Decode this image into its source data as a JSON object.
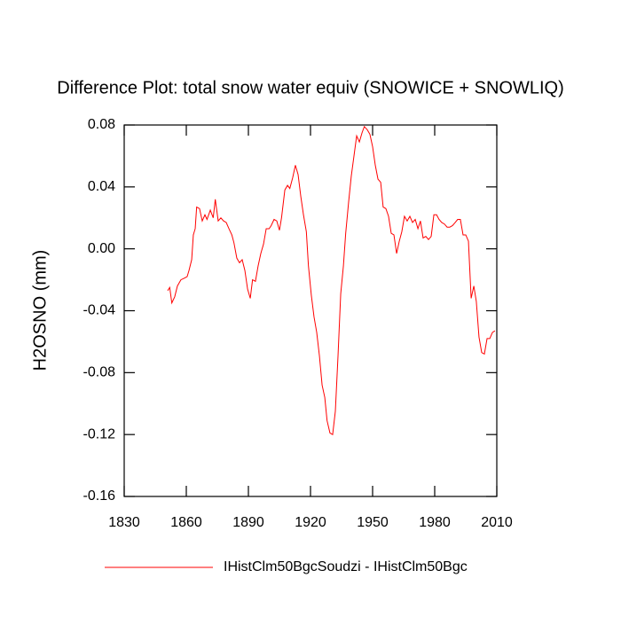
{
  "chart_data": {
    "type": "line",
    "title": "Difference Plot: total snow water equiv (SNOWICE + SNOWLIQ)",
    "y_label": "H2OSNO  (mm)",
    "xlim": [
      1830,
      2010
    ],
    "xticks": [
      1830,
      1860,
      1890,
      1920,
      1950,
      1980,
      2010
    ],
    "ylim": [
      -0.16,
      0.08
    ],
    "yticks": [
      -0.16,
      -0.12,
      -0.08,
      -0.04,
      {
        "value": 0,
        "label": "0.00"
      },
      0.04,
      0.08
    ],
    "x": [
      1851,
      1852,
      1853,
      1854.4,
      1855.7,
      1857.4,
      1859,
      1860.4,
      1861.3,
      1862.6,
      1863.4,
      1864.3,
      1865,
      1866.4,
      1867.7,
      1869,
      1870,
      1871.6,
      1873,
      1874,
      1875.4,
      1876.7,
      1878,
      1879.3,
      1880.6,
      1882,
      1883,
      1884.4,
      1885.7,
      1887,
      1888.3,
      1889.6,
      1890.9,
      1892,
      1893.4,
      1894.7,
      1896,
      1897.3,
      1898.6,
      1900,
      1901,
      1902.4,
      1903.7,
      1905,
      1906,
      1907.6,
      1908.9,
      1910,
      1911.4,
      1912.7,
      1914,
      1915.3,
      1916.6,
      1918,
      1919,
      1920.4,
      1921.7,
      1923,
      1924.3,
      1925.6,
      1926.9,
      1928,
      1929.4,
      1930.7,
      1932,
      1933.3,
      1934.6,
      1935.9,
      1937,
      1938.4,
      1939.7,
      1941,
      1942.3,
      1943.6,
      1944.9,
      1946,
      1947.4,
      1948.7,
      1950,
      1951.3,
      1952.6,
      1953.9,
      1955.1,
      1956.4,
      1957.7,
      1959,
      1960.3,
      1961.6,
      1962.9,
      1964.1,
      1965.4,
      1966.7,
      1968,
      1969.3,
      1970.6,
      1971.9,
      1973.1,
      1974.4,
      1975.7,
      1977,
      1978.3,
      1979.6,
      1980.9,
      1982.1,
      1983.4,
      1984.7,
      1986,
      1987.3,
      1988.6,
      1989.9,
      1991.1,
      1992.4,
      1993.7,
      1995,
      1996.3,
      1997.6,
      1998.9,
      2000.1,
      2001.4,
      2002.7,
      2004,
      2005.3,
      2006.6,
      2007.9,
      2009.1
    ],
    "series": [
      {
        "name": "IHistClm50BgcSoudzi - IHistClm50Bgc",
        "color": "#ff0000",
        "values": [
          -0.027,
          -0.025,
          -0.035,
          -0.031,
          -0.024,
          -0.02,
          -0.019,
          -0.018,
          -0.014,
          -0.007,
          0.009,
          0.013,
          0.027,
          0.026,
          0.018,
          0.022,
          0.019,
          0.025,
          0.02,
          0.032,
          0.018,
          0.02,
          0.018,
          0.017,
          0.013,
          0.009,
          0.004,
          -0.006,
          -0.009,
          -0.007,
          -0.014,
          -0.026,
          -0.032,
          -0.02,
          -0.021,
          -0.011,
          -0.003,
          0.003,
          0.013,
          0.013,
          0.015,
          0.019,
          0.018,
          0.012,
          0.02,
          0.038,
          0.041,
          0.039,
          0.046,
          0.054,
          0.048,
          0.034,
          0.022,
          0.011,
          -0.011,
          -0.03,
          -0.044,
          -0.054,
          -0.069,
          -0.088,
          -0.096,
          -0.111,
          -0.119,
          -0.12,
          -0.105,
          -0.069,
          -0.029,
          -0.011,
          0.01,
          0.03,
          0.047,
          0.06,
          0.073,
          0.069,
          0.075,
          0.079,
          0.077,
          0.074,
          0.066,
          0.054,
          0.045,
          0.043,
          0.027,
          0.026,
          0.021,
          0.01,
          0.009,
          -0.003,
          0.005,
          0.011,
          0.021,
          0.018,
          0.021,
          0.017,
          0.019,
          0.013,
          0.018,
          0.007,
          0.008,
          0.006,
          0.008,
          0.022,
          0.022,
          0.019,
          0.017,
          0.016,
          0.014,
          0.014,
          0.015,
          0.017,
          0.019,
          0.019,
          0.009,
          0.009,
          0.005,
          -0.032,
          -0.024,
          -0.034,
          -0.057,
          -0.067,
          -0.068,
          -0.058,
          -0.058,
          -0.054,
          -0.053
        ]
      }
    ]
  }
}
